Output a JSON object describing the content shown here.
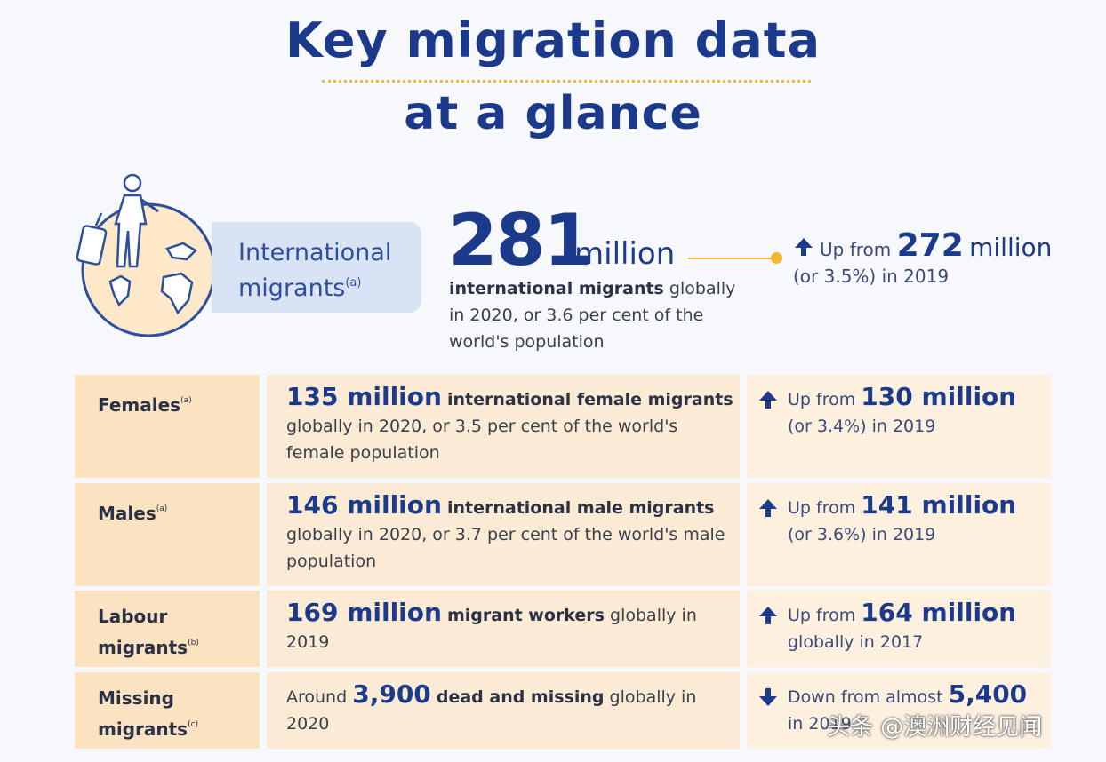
{
  "title": {
    "line1": "Key migration data",
    "line2": "at a glance"
  },
  "hero": {
    "label": "International migrants",
    "label_sup": "(a)",
    "number": "281",
    "unit": "million",
    "desc_bold": "international migrants",
    "desc_rest": " globally in 2020, or 3.6 per cent of the world's population",
    "change_prefix": "Up from",
    "change_num": "272",
    "change_unit": "million",
    "change_suffix": "(or 3.5%) in 2019",
    "direction": "up"
  },
  "rows": [
    {
      "label": "Females",
      "sup": "(a)",
      "num": "135 million",
      "bold": "international female migrants",
      "rest": "globally in 2020, or 3.5 per cent of the world's female population",
      "change_prefix": "Up from",
      "change_num": "130 million",
      "change_suffix": "(or 3.4%) in 2019",
      "direction": "up"
    },
    {
      "label": "Males",
      "sup": "(a)",
      "num": "146 million",
      "bold": "international male migrants",
      "rest": "globally in 2020, or 3.7 per cent of the world's male population",
      "change_prefix": "Up from",
      "change_num": "141 million",
      "change_suffix": "(or 3.6%) in 2019",
      "direction": "up"
    },
    {
      "label": "Labour migrants",
      "sup": "(b)",
      "num": "169 million",
      "bold": "migrant workers",
      "rest": "globally in 2019",
      "change_prefix": "Up from",
      "change_num": "164 million",
      "change_suffix": "globally in 2017",
      "direction": "up"
    },
    {
      "label": "Missing migrants",
      "sup": "(c)",
      "pre": "Around",
      "num": "3,900",
      "bold": "dead and missing",
      "rest": "globally in 2020",
      "change_prefix": "Down from almost",
      "change_num": "5,400",
      "change_suffix": "in 2019",
      "direction": "down"
    }
  ],
  "watermark": "头条 @澳洲财经见闻",
  "colors": {
    "navy": "#1c3a8c",
    "gold": "#f2b733",
    "row_bg": "#fcebd4"
  },
  "icons": [
    "traveler-globe-icon",
    "arrow-up-icon",
    "arrow-down-icon"
  ]
}
